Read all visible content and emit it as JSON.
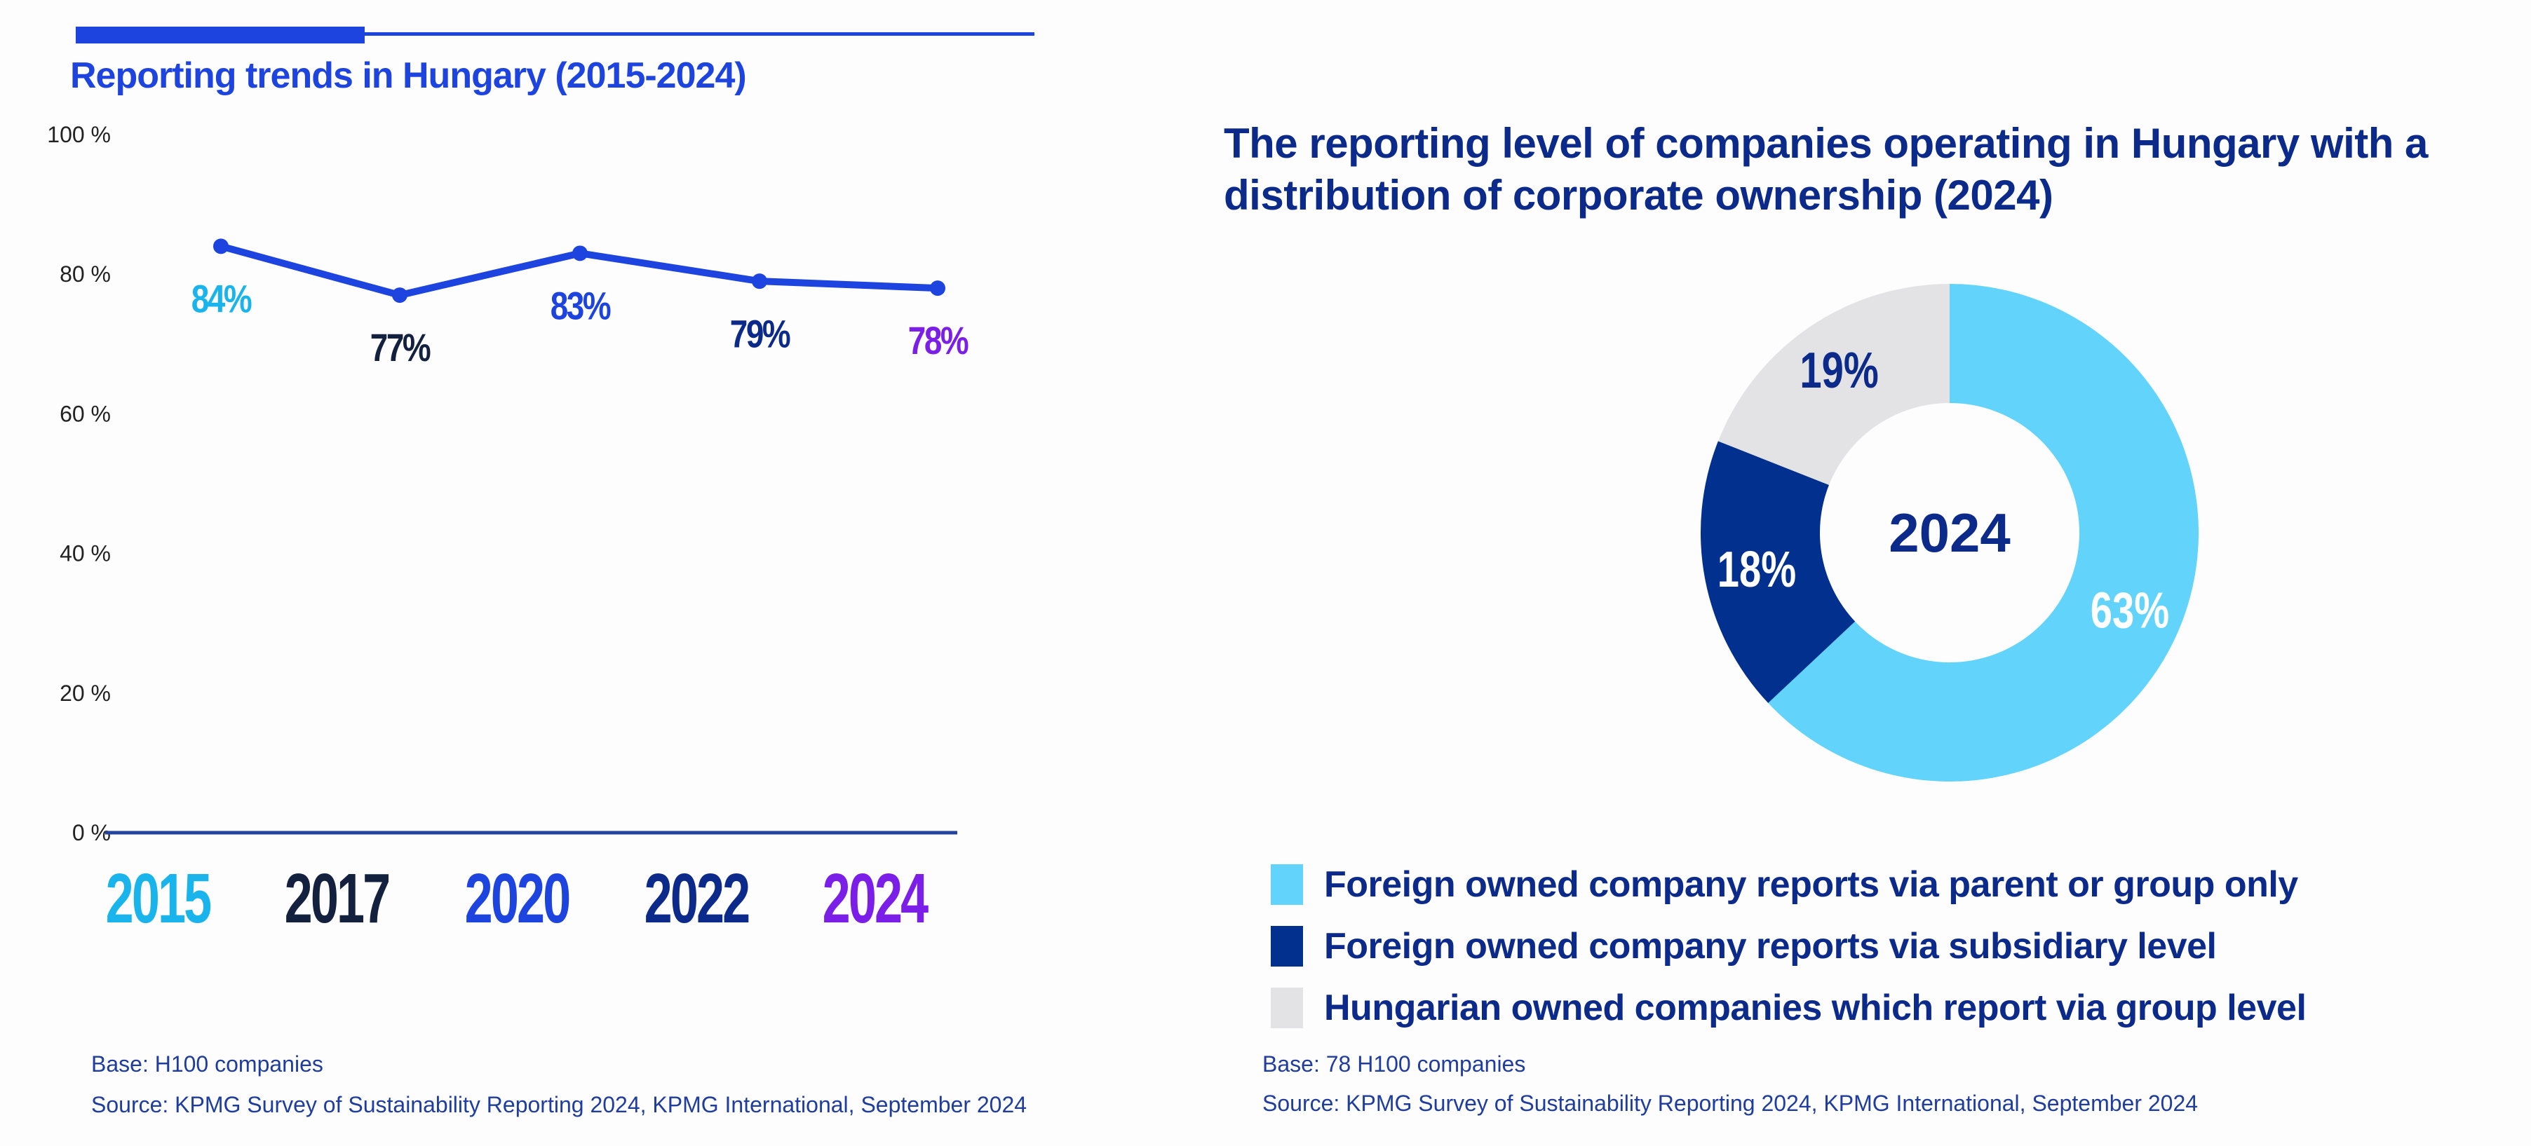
{
  "left_panel": {
    "title": "Reporting trends in Hungary (2015-2024)",
    "footer": {
      "base": "Base: H100 companies",
      "source": "Source: KPMG Survey of Sustainability Reporting 2024, KPMG International, September 2024"
    }
  },
  "right_panel": {
    "title_line1": "The reporting level of companies operating in Hungary with a",
    "title_line2": "distribution of corporate ownership (2024)",
    "footer": {
      "base": "Base: 78 H100 companies",
      "source": "Source: KPMG Survey of Sustainability Reporting 2024, KPMG International, September 2024"
    }
  },
  "colors": {
    "accent": "#1e44e0",
    "navy": "#0c2a8a",
    "line": "#1e44e0"
  },
  "chart_data": [
    {
      "type": "line",
      "title": "Reporting trends in Hungary (2015-2024)",
      "x": [
        "2015",
        "2017",
        "2020",
        "2022",
        "2024"
      ],
      "series": [
        {
          "name": "Reporting rate",
          "values": [
            84,
            77,
            83,
            79,
            78
          ]
        }
      ],
      "data_labels": [
        "84%",
        "77%",
        "83%",
        "79%",
        "78%"
      ],
      "label_colors": [
        "#1ab4ec",
        "#13213f",
        "#1e44e0",
        "#0c2a8a",
        "#7a1ee8"
      ],
      "xtick_colors": [
        "#1ab4ec",
        "#13213f",
        "#1e44e0",
        "#0c2a8a",
        "#7a1ee8"
      ],
      "yticks": [
        "0 %",
        "20 %",
        "40 %",
        "60 %",
        "80 %",
        "100 %"
      ],
      "ylim": [
        0,
        100
      ],
      "xlabel": "",
      "ylabel": "",
      "grid": false
    },
    {
      "type": "pie",
      "variant": "donut",
      "title": "The reporting level of companies operating in Hungary with a distribution of corporate ownership (2024)",
      "center_label": "2024",
      "slices": [
        {
          "label": "Foreign owned company reports via parent or group only",
          "value": 63,
          "display": "63%",
          "color": "#62d4fb",
          "text_color": "#ffffff"
        },
        {
          "label": "Foreign owned company reports via subsidiary level",
          "value": 18,
          "display": "18%",
          "color": "#01308f",
          "text_color": "#ffffff"
        },
        {
          "label": "Hungarian owned companies which report via group level",
          "value": 19,
          "display": "19%",
          "color": "#e3e3e5",
          "text_color": "#0c2a8a"
        }
      ],
      "legend_position": "bottom"
    }
  ]
}
